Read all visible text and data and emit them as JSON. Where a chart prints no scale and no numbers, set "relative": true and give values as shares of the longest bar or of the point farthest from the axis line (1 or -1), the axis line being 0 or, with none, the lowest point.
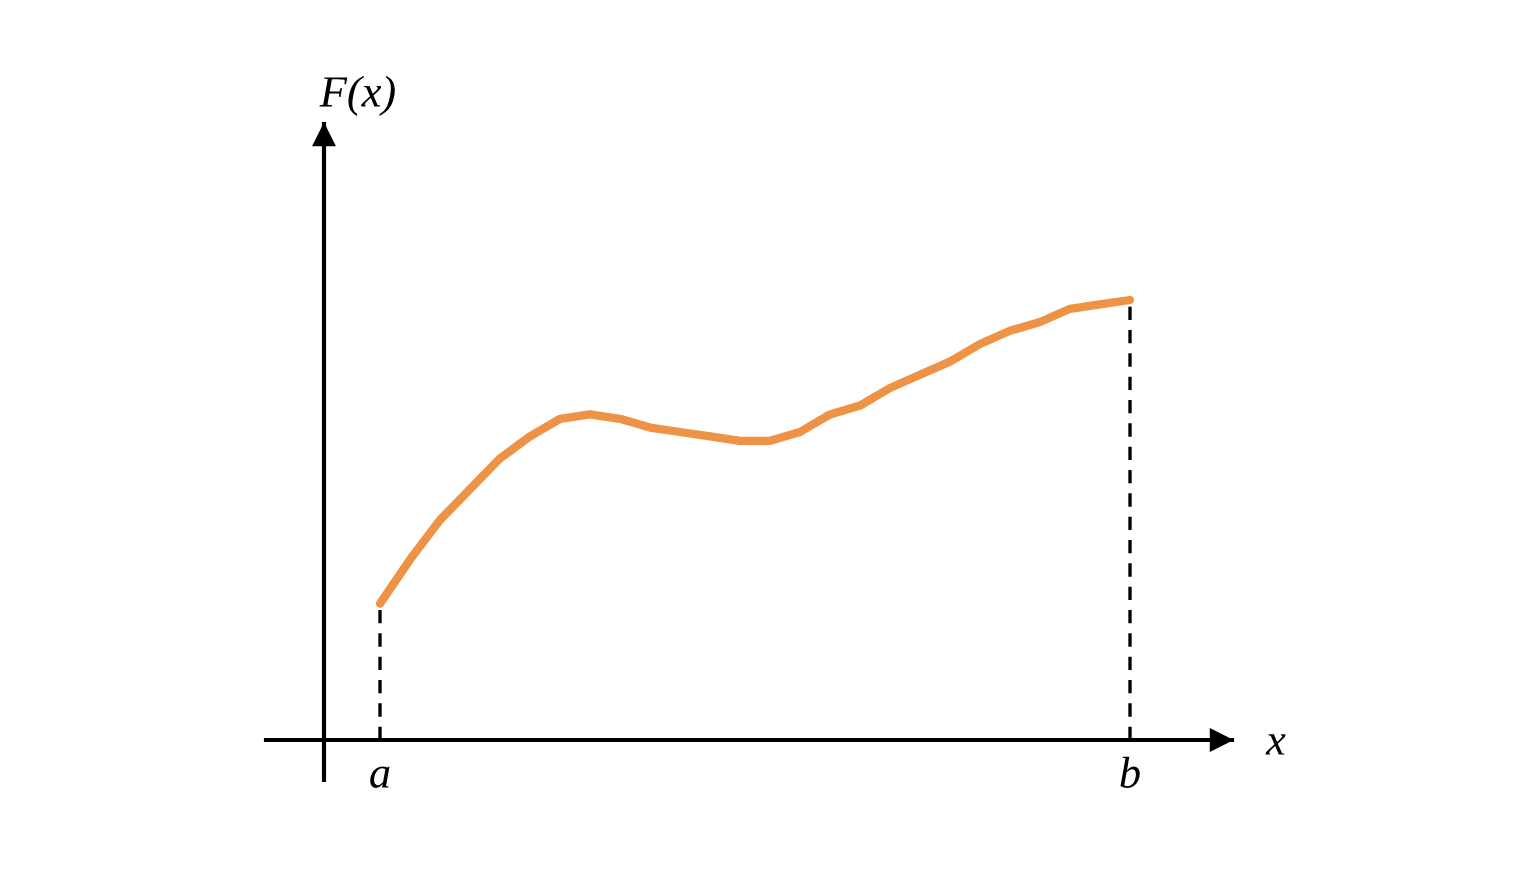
{
  "chart_data": {
    "type": "line",
    "xlabel": "x",
    "ylabel": "F(x)",
    "categories": [
      "a",
      null,
      null,
      null,
      null,
      null,
      null,
      null,
      null,
      null,
      null,
      null,
      null,
      null,
      null,
      null,
      null,
      null,
      null,
      null,
      null,
      null,
      null,
      null,
      null,
      "b"
    ],
    "relative": true,
    "series": [
      {
        "color": "#ee9245",
        "values": [
          0.31,
          0.41,
          0.5,
          0.57,
          0.64,
          0.69,
          0.73,
          0.74,
          0.73,
          0.71,
          0.7,
          0.69,
          0.68,
          0.68,
          0.7,
          0.74,
          0.76,
          0.8,
          0.83,
          0.86,
          0.9,
          0.93,
          0.95,
          0.98,
          0.99,
          1.0
        ]
      }
    ],
    "ref_lines": [
      {
        "axis": "x",
        "value": "a",
        "line_style": "dashed",
        "color": "#000000"
      },
      {
        "axis": "x",
        "value": "b",
        "line_style": "dashed",
        "color": "#000000"
      }
    ],
    "grid": false,
    "marker": "none",
    "line_style": "solid"
  }
}
